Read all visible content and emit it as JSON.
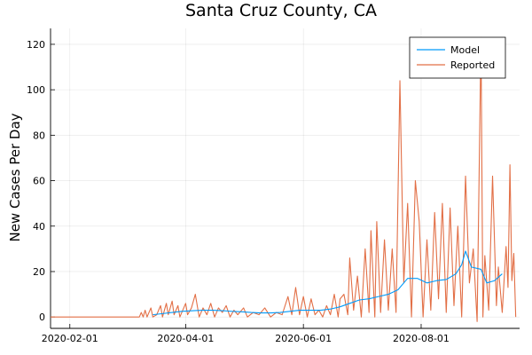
{
  "chart_data": {
    "type": "line",
    "title": "Santa Cruz County, CA",
    "xlabel": "",
    "ylabel": "New Cases Per Day",
    "x_ticks": [
      "2020-02-01",
      "2020-04-01",
      "2020-06-01",
      "2020-08-01"
    ],
    "y_ticks": [
      0,
      20,
      40,
      60,
      80,
      100,
      120
    ],
    "xlim": [
      "2020-01-22",
      "2020-09-21"
    ],
    "ylim": [
      -5,
      127
    ],
    "grid": true,
    "legend_position": "top-right",
    "series_colors": {
      "Model": "#009AFA",
      "Reported": "#E26F46"
    },
    "series": [
      {
        "name": "Model",
        "points": [
          [
            "2020-03-15",
            1
          ],
          [
            "2020-03-20",
            1.5
          ],
          [
            "2020-03-25",
            2
          ],
          [
            "2020-03-30",
            2.5
          ],
          [
            "2020-04-05",
            2.8
          ],
          [
            "2020-04-10",
            3
          ],
          [
            "2020-04-15",
            3
          ],
          [
            "2020-04-20",
            2.8
          ],
          [
            "2020-04-25",
            2.5
          ],
          [
            "2020-04-30",
            2.3
          ],
          [
            "2020-05-05",
            2
          ],
          [
            "2020-05-10",
            1.8
          ],
          [
            "2020-05-15",
            1.8
          ],
          [
            "2020-05-20",
            2
          ],
          [
            "2020-05-25",
            2.5
          ],
          [
            "2020-05-30",
            3
          ],
          [
            "2020-06-05",
            3
          ],
          [
            "2020-06-10",
            3
          ],
          [
            "2020-06-15",
            3.5
          ],
          [
            "2020-06-20",
            4.5
          ],
          [
            "2020-06-25",
            6
          ],
          [
            "2020-06-30",
            7.5
          ],
          [
            "2020-07-05",
            8
          ],
          [
            "2020-07-10",
            9
          ],
          [
            "2020-07-15",
            10
          ],
          [
            "2020-07-20",
            12
          ],
          [
            "2020-07-25",
            17
          ],
          [
            "2020-07-30",
            17
          ],
          [
            "2020-08-04",
            15
          ],
          [
            "2020-08-09",
            16
          ],
          [
            "2020-08-14",
            16.5
          ],
          [
            "2020-08-19",
            19
          ],
          [
            "2020-08-22",
            23
          ],
          [
            "2020-08-24",
            29
          ],
          [
            "2020-08-27",
            22
          ],
          [
            "2020-09-01",
            21
          ],
          [
            "2020-09-04",
            15
          ],
          [
            "2020-09-08",
            16
          ],
          [
            "2020-09-12",
            19
          ]
        ]
      },
      {
        "name": "Reported",
        "points": [
          [
            "2020-01-22",
            0
          ],
          [
            "2020-03-08",
            0
          ],
          [
            "2020-03-09",
            2
          ],
          [
            "2020-03-10",
            0
          ],
          [
            "2020-03-11",
            3
          ],
          [
            "2020-03-12",
            0
          ],
          [
            "2020-03-14",
            4
          ],
          [
            "2020-03-15",
            0
          ],
          [
            "2020-03-17",
            1
          ],
          [
            "2020-03-19",
            5
          ],
          [
            "2020-03-20",
            0
          ],
          [
            "2020-03-22",
            6
          ],
          [
            "2020-03-23",
            1
          ],
          [
            "2020-03-25",
            7
          ],
          [
            "2020-03-26",
            1
          ],
          [
            "2020-03-28",
            5
          ],
          [
            "2020-03-29",
            0
          ],
          [
            "2020-04-01",
            6
          ],
          [
            "2020-04-02",
            1
          ],
          [
            "2020-04-04",
            4
          ],
          [
            "2020-04-06",
            10
          ],
          [
            "2020-04-08",
            0
          ],
          [
            "2020-04-10",
            4
          ],
          [
            "2020-04-12",
            1
          ],
          [
            "2020-04-14",
            6
          ],
          [
            "2020-04-16",
            0
          ],
          [
            "2020-04-18",
            4
          ],
          [
            "2020-04-20",
            2
          ],
          [
            "2020-04-22",
            5
          ],
          [
            "2020-04-24",
            0
          ],
          [
            "2020-04-26",
            3
          ],
          [
            "2020-04-28",
            1
          ],
          [
            "2020-05-01",
            4
          ],
          [
            "2020-05-03",
            0
          ],
          [
            "2020-05-06",
            2
          ],
          [
            "2020-05-09",
            1
          ],
          [
            "2020-05-12",
            4
          ],
          [
            "2020-05-15",
            0
          ],
          [
            "2020-05-18",
            2
          ],
          [
            "2020-05-21",
            1
          ],
          [
            "2020-05-24",
            9
          ],
          [
            "2020-05-26",
            1
          ],
          [
            "2020-05-28",
            13
          ],
          [
            "2020-05-30",
            1
          ],
          [
            "2020-06-01",
            9
          ],
          [
            "2020-06-03",
            0
          ],
          [
            "2020-06-05",
            8
          ],
          [
            "2020-06-07",
            1
          ],
          [
            "2020-06-09",
            3
          ],
          [
            "2020-06-11",
            0
          ],
          [
            "2020-06-13",
            5
          ],
          [
            "2020-06-15",
            1
          ],
          [
            "2020-06-17",
            10
          ],
          [
            "2020-06-19",
            0
          ],
          [
            "2020-06-20",
            8
          ],
          [
            "2020-06-22",
            10
          ],
          [
            "2020-06-24",
            1
          ],
          [
            "2020-06-25",
            26
          ],
          [
            "2020-06-27",
            3
          ],
          [
            "2020-06-29",
            18
          ],
          [
            "2020-07-01",
            0
          ],
          [
            "2020-07-03",
            30
          ],
          [
            "2020-07-05",
            2
          ],
          [
            "2020-07-06",
            38
          ],
          [
            "2020-07-08",
            0
          ],
          [
            "2020-07-09",
            42
          ],
          [
            "2020-07-11",
            2
          ],
          [
            "2020-07-13",
            34
          ],
          [
            "2020-07-15",
            3
          ],
          [
            "2020-07-17",
            30
          ],
          [
            "2020-07-19",
            2
          ],
          [
            "2020-07-21",
            104
          ],
          [
            "2020-07-23",
            15
          ],
          [
            "2020-07-25",
            50
          ],
          [
            "2020-07-27",
            0
          ],
          [
            "2020-07-29",
            60
          ],
          [
            "2020-07-31",
            42
          ],
          [
            "2020-08-02",
            0
          ],
          [
            "2020-08-04",
            34
          ],
          [
            "2020-08-06",
            3
          ],
          [
            "2020-08-08",
            46
          ],
          [
            "2020-08-10",
            8
          ],
          [
            "2020-08-12",
            50
          ],
          [
            "2020-08-14",
            2
          ],
          [
            "2020-08-16",
            48
          ],
          [
            "2020-08-18",
            5
          ],
          [
            "2020-08-20",
            40
          ],
          [
            "2020-08-22",
            0
          ],
          [
            "2020-08-24",
            62
          ],
          [
            "2020-08-26",
            15
          ],
          [
            "2020-08-28",
            30
          ],
          [
            "2020-08-30",
            -2
          ],
          [
            "2020-09-01",
            123
          ],
          [
            "2020-09-02",
            0
          ],
          [
            "2020-09-03",
            27
          ],
          [
            "2020-09-05",
            3
          ],
          [
            "2020-09-07",
            62
          ],
          [
            "2020-09-09",
            5
          ],
          [
            "2020-09-10",
            22
          ],
          [
            "2020-09-12",
            2
          ],
          [
            "2020-09-14",
            31
          ],
          [
            "2020-09-15",
            13
          ],
          [
            "2020-09-16",
            67
          ],
          [
            "2020-09-17",
            16
          ],
          [
            "2020-09-18",
            28
          ],
          [
            "2020-09-19",
            0
          ]
        ]
      }
    ]
  }
}
